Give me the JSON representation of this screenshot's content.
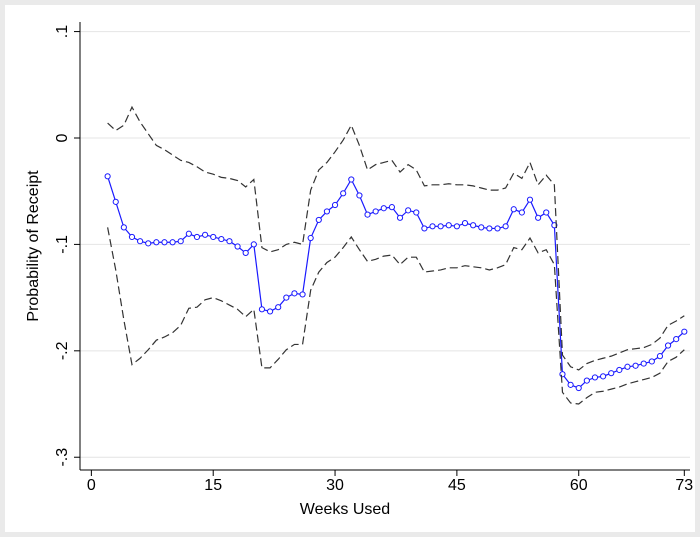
{
  "chart_data": {
    "type": "line",
    "xlabel": "Weeks Used",
    "ylabel": "Probability of Receipt",
    "x": [
      2,
      3,
      4,
      5,
      6,
      7,
      8,
      9,
      10,
      11,
      12,
      13,
      14,
      15,
      16,
      17,
      18,
      19,
      20,
      21,
      22,
      23,
      24,
      25,
      26,
      27,
      28,
      29,
      30,
      31,
      32,
      33,
      34,
      35,
      36,
      37,
      38,
      39,
      40,
      41,
      42,
      43,
      44,
      45,
      46,
      47,
      48,
      49,
      50,
      51,
      52,
      53,
      54,
      55,
      56,
      57,
      58,
      59,
      60,
      61,
      62,
      63,
      64,
      65,
      66,
      67,
      68,
      69,
      70,
      71,
      72,
      73
    ],
    "series": [
      {
        "color": "#1a1aff",
        "markers": true,
        "dashed": false,
        "values": [
          -0.036,
          -0.06,
          -0.084,
          -0.093,
          -0.097,
          -0.099,
          -0.098,
          -0.098,
          -0.098,
          -0.097,
          -0.09,
          -0.093,
          -0.091,
          -0.093,
          -0.095,
          -0.097,
          -0.102,
          -0.108,
          -0.1,
          -0.161,
          -0.163,
          -0.159,
          -0.15,
          -0.146,
          -0.147,
          -0.094,
          -0.077,
          -0.069,
          -0.063,
          -0.052,
          -0.039,
          -0.054,
          -0.072,
          -0.069,
          -0.066,
          -0.065,
          -0.075,
          -0.068,
          -0.07,
          -0.085,
          -0.083,
          -0.083,
          -0.082,
          -0.083,
          -0.08,
          -0.082,
          -0.084,
          -0.085,
          -0.085,
          -0.083,
          -0.067,
          -0.07,
          -0.058,
          -0.075,
          -0.07,
          -0.082,
          -0.222,
          -0.232,
          -0.235,
          -0.228,
          -0.225,
          -0.224,
          -0.221,
          -0.218,
          -0.215,
          -0.214,
          -0.212,
          -0.21,
          -0.205,
          -0.195,
          -0.189,
          -0.182
        ]
      },
      {
        "color": "#333333",
        "markers": false,
        "dashed": true,
        "values": [
          0.014,
          0.007,
          0.012,
          0.029,
          0.015,
          0.004,
          -0.007,
          -0.011,
          -0.016,
          -0.021,
          -0.023,
          -0.027,
          -0.032,
          -0.034,
          -0.037,
          -0.038,
          -0.04,
          -0.046,
          -0.039,
          -0.103,
          -0.107,
          -0.105,
          -0.1,
          -0.098,
          -0.1,
          -0.049,
          -0.03,
          -0.023,
          -0.013,
          -0.002,
          0.012,
          -0.007,
          -0.03,
          -0.025,
          -0.023,
          -0.021,
          -0.032,
          -0.025,
          -0.03,
          -0.045,
          -0.044,
          -0.044,
          -0.043,
          -0.044,
          -0.044,
          -0.045,
          -0.047,
          -0.049,
          -0.049,
          -0.047,
          -0.033,
          -0.038,
          -0.023,
          -0.044,
          -0.035,
          -0.044,
          -0.204,
          -0.215,
          -0.218,
          -0.212,
          -0.209,
          -0.207,
          -0.205,
          -0.202,
          -0.199,
          -0.198,
          -0.197,
          -0.194,
          -0.188,
          -0.176,
          -0.172,
          -0.167
        ]
      },
      {
        "color": "#333333",
        "markers": false,
        "dashed": true,
        "values": [
          -0.084,
          -0.124,
          -0.171,
          -0.213,
          -0.207,
          -0.199,
          -0.19,
          -0.187,
          -0.183,
          -0.176,
          -0.16,
          -0.159,
          -0.152,
          -0.15,
          -0.153,
          -0.157,
          -0.161,
          -0.168,
          -0.161,
          -0.216,
          -0.216,
          -0.208,
          -0.199,
          -0.194,
          -0.194,
          -0.143,
          -0.126,
          -0.117,
          -0.112,
          -0.103,
          -0.093,
          -0.105,
          -0.116,
          -0.114,
          -0.111,
          -0.11,
          -0.119,
          -0.112,
          -0.112,
          -0.126,
          -0.125,
          -0.124,
          -0.122,
          -0.122,
          -0.12,
          -0.121,
          -0.122,
          -0.124,
          -0.122,
          -0.119,
          -0.103,
          -0.105,
          -0.094,
          -0.108,
          -0.105,
          -0.119,
          -0.239,
          -0.249,
          -0.25,
          -0.244,
          -0.239,
          -0.238,
          -0.236,
          -0.234,
          -0.231,
          -0.229,
          -0.227,
          -0.225,
          -0.221,
          -0.21,
          -0.206,
          -0.199
        ]
      }
    ],
    "xlim": [
      -1.4,
      73.7
    ],
    "xticks": [
      0,
      15,
      30,
      45,
      60,
      73
    ],
    "ylim": [
      -0.312,
      0.109
    ],
    "yticks": [
      {
        "value": -0.3,
        "label": "-.3"
      },
      {
        "value": -0.2,
        "label": "-.2"
      },
      {
        "value": -0.1,
        "label": "-.1"
      },
      0,
      {
        "value": 0.1,
        "label": ".1"
      }
    ],
    "grid": true
  }
}
